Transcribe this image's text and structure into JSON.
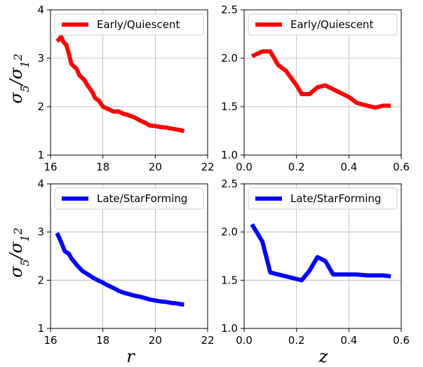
{
  "chart_data": [
    {
      "type": "line",
      "panel": "top-left",
      "xlabel": "r",
      "ylabel": "σ5/σ12",
      "xlim": [
        16,
        22
      ],
      "ylim": [
        1,
        4
      ],
      "xticks": [
        "16",
        "18",
        "20",
        "22"
      ],
      "yticks": [
        "1",
        "2",
        "3",
        "4"
      ],
      "grid": true,
      "legend_position": "top-right",
      "series": [
        {
          "name": "Early/Quiescent",
          "color": "#ff0000",
          "x": [
            16.25,
            16.35,
            16.4,
            16.5,
            16.6,
            16.7,
            16.8,
            17.0,
            17.1,
            17.3,
            17.4,
            17.6,
            17.7,
            17.85,
            18.0,
            18.2,
            18.4,
            18.6,
            18.8,
            19.0,
            19.2,
            19.4,
            19.6,
            19.8,
            20.0,
            20.2,
            20.4,
            20.6,
            20.8,
            21.0,
            21.1
          ],
          "y": [
            3.35,
            3.4,
            3.45,
            3.33,
            3.28,
            3.1,
            2.88,
            2.78,
            2.65,
            2.55,
            2.45,
            2.3,
            2.18,
            2.12,
            2.0,
            1.95,
            1.9,
            1.9,
            1.85,
            1.82,
            1.78,
            1.72,
            1.67,
            1.61,
            1.6,
            1.58,
            1.57,
            1.55,
            1.53,
            1.51,
            1.49
          ]
        }
      ]
    },
    {
      "type": "line",
      "panel": "top-right",
      "xlabel": "z",
      "ylabel": "",
      "xlim": [
        0.0,
        0.6
      ],
      "ylim": [
        1.0,
        2.5
      ],
      "xticks": [
        "0.0",
        "0.2",
        "0.4",
        "0.6"
      ],
      "yticks": [
        "1.0",
        "1.5",
        "2.0",
        "2.5"
      ],
      "grid": true,
      "legend_position": "top-right",
      "series": [
        {
          "name": "Early/Quiescent",
          "color": "#ff0000",
          "x": [
            0.03,
            0.07,
            0.1,
            0.13,
            0.16,
            0.2,
            0.22,
            0.25,
            0.28,
            0.31,
            0.34,
            0.37,
            0.4,
            0.43,
            0.47,
            0.5,
            0.53,
            0.56
          ],
          "y": [
            2.02,
            2.07,
            2.07,
            1.93,
            1.87,
            1.72,
            1.63,
            1.63,
            1.7,
            1.72,
            1.68,
            1.64,
            1.6,
            1.54,
            1.51,
            1.49,
            1.51,
            1.51
          ]
        }
      ]
    },
    {
      "type": "line",
      "panel": "bottom-left",
      "xlabel": "r",
      "ylabel": "σ5/σ12",
      "xlim": [
        16,
        22
      ],
      "ylim": [
        1,
        4
      ],
      "xticks": [
        "16",
        "18",
        "20",
        "22"
      ],
      "yticks": [
        "1",
        "2",
        "3",
        "4"
      ],
      "grid": true,
      "legend_position": "top-right",
      "series": [
        {
          "name": "Late/StarForming",
          "color": "#0000ff",
          "x": [
            16.25,
            16.4,
            16.55,
            16.7,
            16.8,
            17.0,
            17.2,
            17.4,
            17.6,
            17.8,
            18.0,
            18.2,
            18.4,
            18.6,
            18.8,
            19.0,
            19.2,
            19.4,
            19.6,
            19.8,
            20.0,
            20.2,
            20.4,
            20.6,
            20.8,
            21.0,
            21.1
          ],
          "y": [
            2.98,
            2.8,
            2.6,
            2.55,
            2.45,
            2.32,
            2.2,
            2.13,
            2.06,
            2.0,
            1.95,
            1.89,
            1.84,
            1.78,
            1.74,
            1.71,
            1.68,
            1.66,
            1.63,
            1.6,
            1.58,
            1.56,
            1.55,
            1.53,
            1.52,
            1.5,
            1.5
          ]
        }
      ]
    },
    {
      "type": "line",
      "panel": "bottom-right",
      "xlabel": "z",
      "ylabel": "",
      "xlim": [
        0.0,
        0.6
      ],
      "ylim": [
        1.0,
        2.5
      ],
      "xticks": [
        "0.0",
        "0.2",
        "0.4",
        "0.6"
      ],
      "yticks": [
        "1.0",
        "1.5",
        "2.0",
        "2.5"
      ],
      "grid": true,
      "legend_position": "top-right",
      "series": [
        {
          "name": "Late/StarForming",
          "color": "#0000ff",
          "x": [
            0.03,
            0.07,
            0.1,
            0.13,
            0.16,
            0.19,
            0.22,
            0.25,
            0.28,
            0.31,
            0.34,
            0.37,
            0.4,
            0.43,
            0.47,
            0.5,
            0.53,
            0.56
          ],
          "y": [
            2.08,
            1.9,
            1.58,
            1.56,
            1.54,
            1.52,
            1.5,
            1.6,
            1.74,
            1.7,
            1.56,
            1.56,
            1.56,
            1.56,
            1.55,
            1.55,
            1.55,
            1.54
          ]
        }
      ]
    }
  ]
}
